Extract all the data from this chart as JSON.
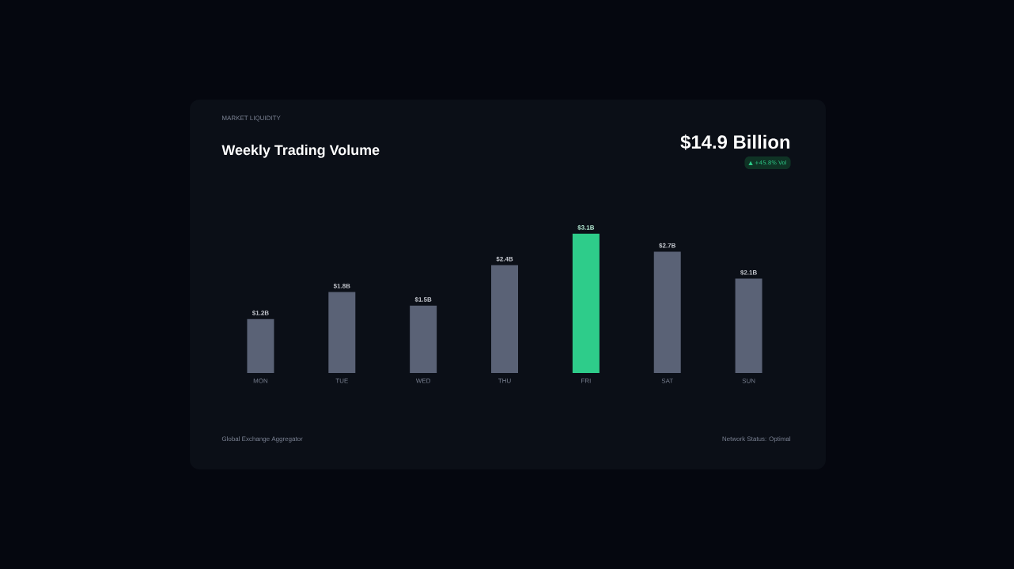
{
  "chart_data": {
    "type": "bar",
    "subtitle": "MARKET LIQUIDITY",
    "title": "Weekly Trading Volume",
    "categories": [
      "MON",
      "TUE",
      "WED",
      "THU",
      "FRI",
      "SAT",
      "SUN"
    ],
    "values": [
      1.2,
      1.8,
      1.5,
      2.4,
      3.1,
      2.7,
      2.1
    ],
    "colors": [
      "#5a6276",
      "#5a6276",
      "#5a6276",
      "#5a6276",
      "#2ecc8a",
      "#5a6276",
      "#5a6276"
    ],
    "data_labels": true,
    "value_labels": [
      "$1.2B",
      "$1.8B",
      "$1.5B",
      "$2.4B",
      "$3.1B",
      "$2.7B",
      "$2.1B"
    ],
    "annotations": [
      "$14.9 Billion",
      "▲ +45.8% Vol",
      "Global Exchange Aggregator",
      "Network Status: Optimal"
    ]
  }
}
